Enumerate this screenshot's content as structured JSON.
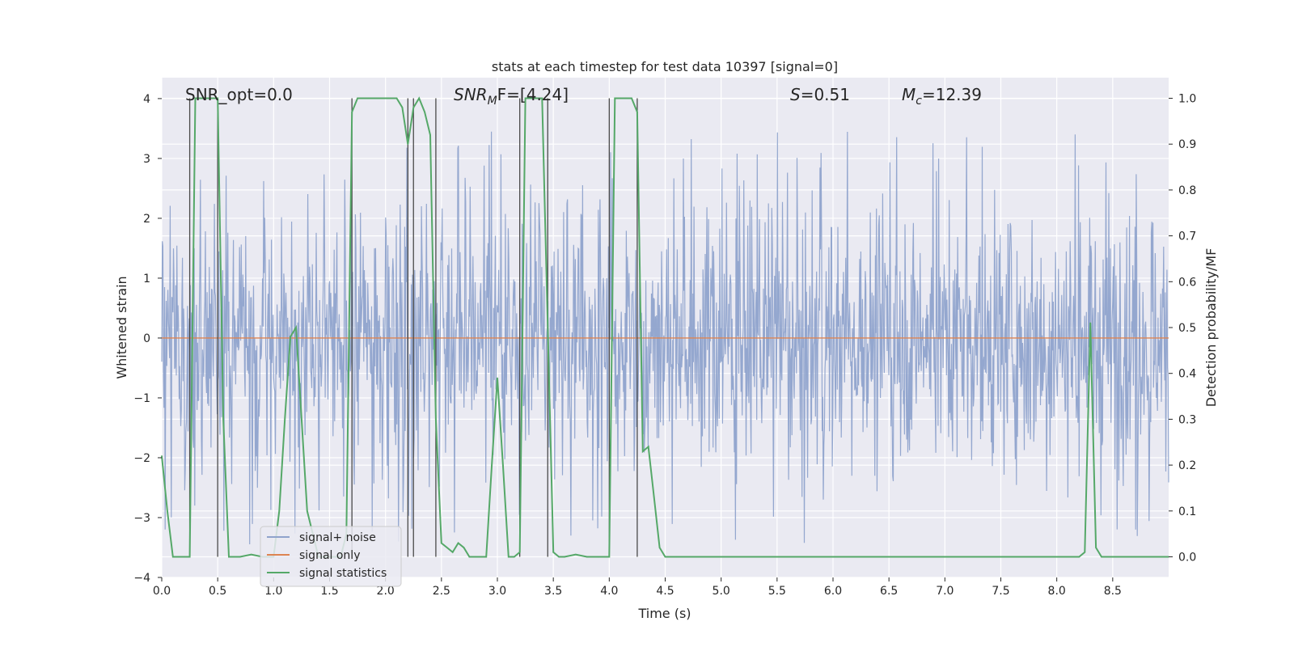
{
  "chart_data": {
    "type": "line",
    "title": "stats at each timestep for test data 10397 [signal=0]",
    "xlabel": "Time (s)",
    "ylabel_left": "Whitened strain",
    "ylabel_right": "Detection probability/MF",
    "xlim": [
      0,
      9
    ],
    "ylim_left": [
      -4,
      4.35
    ],
    "ylim_right": [
      -0.045,
      1.045
    ],
    "x_ticks": [
      0.0,
      0.5,
      1.0,
      1.5,
      2.0,
      2.5,
      3.0,
      3.5,
      4.0,
      4.5,
      5.0,
      5.5,
      6.0,
      6.5,
      7.0,
      7.5,
      8.0,
      8.5
    ],
    "x_tick_labels": [
      "0.0",
      "0.5",
      "1.0",
      "1.5",
      "2.0",
      "2.5",
      "3.0",
      "3.5",
      "4.0",
      "4.5",
      "5.0",
      "5.5",
      "6.0",
      "6.5",
      "7.0",
      "7.5",
      "8.0",
      "8.5"
    ],
    "y_left_ticks": [
      -4,
      -3,
      -2,
      -1,
      0,
      1,
      2,
      3,
      4
    ],
    "y_left_tick_labels": [
      "−4",
      "−3",
      "−2",
      "−1",
      "0",
      "1",
      "2",
      "3",
      "4"
    ],
    "y_right_ticks": [
      0.0,
      0.1,
      0.2,
      0.3,
      0.4,
      0.5,
      0.6,
      0.7,
      0.8,
      0.9,
      1.0
    ],
    "y_right_tick_labels": [
      "0.0",
      "0.1",
      "0.2",
      "0.3",
      "0.4",
      "0.5",
      "0.6",
      "0.7",
      "0.8",
      "0.9",
      "1.0"
    ],
    "annotations": {
      "snr_opt": "SNR_opt=0.0",
      "snr_mf_base": "SNR",
      "snr_mf_sub": "M",
      "snr_mf_rest": "F=[4.24]",
      "s_label": "S",
      "s_value": "=0.51",
      "mc_base": "M",
      "mc_sub": "c",
      "mc_value": "=12.39"
    },
    "legend": {
      "placement": "lower-left",
      "entries": [
        {
          "name": "signal+ noise",
          "color": "#8fa3cc"
        },
        {
          "name": "signal only",
          "color": "#dd8452"
        },
        {
          "name": "signal statistics",
          "color": "#55a868"
        }
      ]
    },
    "noise_series": {
      "name": "signal+ noise",
      "x_start": 0.0,
      "x_end": 9.0,
      "n_points": 1800,
      "typical_amplitude": 1.7,
      "peak_min": -3.6,
      "peak_max": 3.6
    },
    "signal_only": {
      "name": "signal only",
      "value": 0.0
    },
    "statistics_series": {
      "name": "signal statistics",
      "x": [
        0.0,
        0.05,
        0.1,
        0.15,
        0.2,
        0.25,
        0.3,
        0.35,
        0.4,
        0.45,
        0.5,
        0.55,
        0.6,
        0.7,
        0.8,
        0.9,
        1.0,
        1.05,
        1.1,
        1.15,
        1.2,
        1.25,
        1.3,
        1.35,
        1.4,
        1.5,
        1.6,
        1.65,
        1.7,
        1.75,
        1.8,
        1.85,
        1.9,
        2.0,
        2.1,
        2.15,
        2.2,
        2.25,
        2.3,
        2.35,
        2.4,
        2.45,
        2.5,
        2.55,
        2.6,
        2.65,
        2.7,
        2.75,
        2.8,
        2.9,
        2.95,
        3.0,
        3.05,
        3.1,
        3.15,
        3.2,
        3.25,
        3.3,
        3.35,
        3.4,
        3.45,
        3.5,
        3.55,
        3.6,
        3.7,
        3.8,
        3.9,
        4.0,
        4.05,
        4.1,
        4.15,
        4.2,
        4.25,
        4.3,
        4.35,
        4.4,
        4.45,
        4.5,
        4.6,
        5.0,
        6.0,
        7.0,
        8.0,
        8.2,
        8.25,
        8.3,
        8.35,
        8.4,
        8.5,
        8.7,
        9.0
      ],
      "y": [
        0.22,
        0.1,
        0.0,
        0.0,
        0.0,
        0.0,
        1.0,
        1.0,
        1.0,
        1.0,
        1.0,
        0.3,
        0.0,
        0.0,
        0.005,
        0.0,
        0.0,
        0.1,
        0.3,
        0.48,
        0.5,
        0.3,
        0.1,
        0.05,
        0.0,
        0.0,
        0.0,
        0.05,
        0.97,
        1.0,
        1.0,
        1.0,
        1.0,
        1.0,
        1.0,
        0.98,
        0.9,
        0.98,
        1.0,
        0.97,
        0.92,
        0.3,
        0.03,
        0.02,
        0.01,
        0.03,
        0.02,
        0.0,
        0.0,
        0.0,
        0.2,
        0.39,
        0.2,
        0.0,
        0.0,
        0.01,
        1.0,
        1.0,
        1.0,
        1.0,
        0.5,
        0.01,
        0.0,
        0.0,
        0.005,
        0.0,
        0.0,
        0.0,
        1.0,
        1.0,
        1.0,
        1.0,
        0.97,
        0.23,
        0.24,
        0.13,
        0.02,
        0.0,
        0.0,
        0.0,
        0.0,
        0.0,
        0.0,
        0.0,
        0.01,
        0.51,
        0.02,
        0.0,
        0.0,
        0.0,
        0.0
      ]
    },
    "vertical_markers": [
      0.25,
      0.5,
      1.7,
      2.2,
      2.25,
      2.45,
      3.2,
      3.45,
      4.0,
      4.25
    ]
  }
}
